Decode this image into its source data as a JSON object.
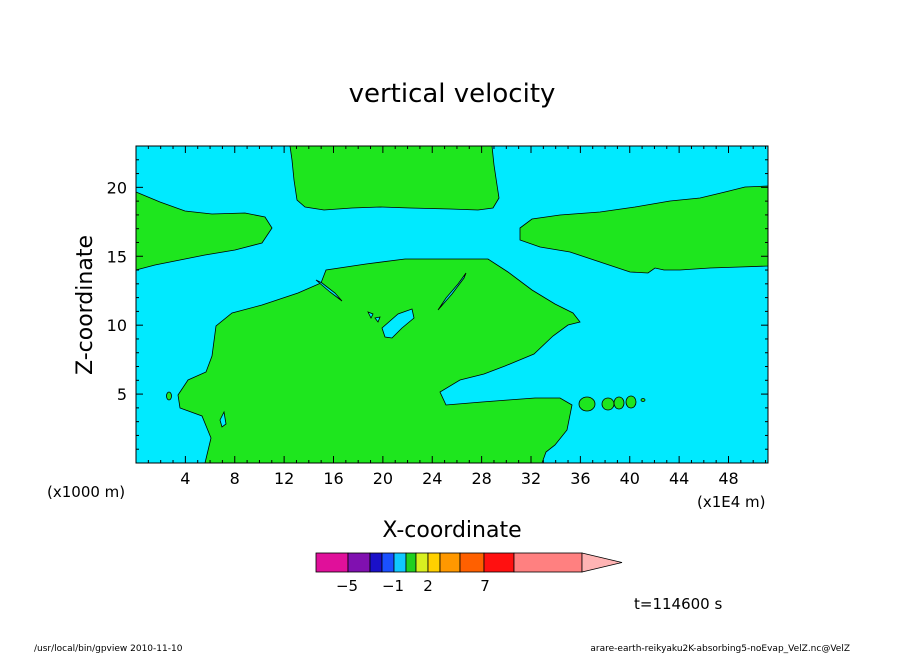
{
  "chart_data": {
    "type": "heatmap",
    "title": "vertical velocity",
    "xlabel": "X-coordinate",
    "ylabel": "Z-coordinate",
    "x_units": "(x1E4 m)",
    "y_units": "(x1000 m)",
    "xlim": [
      0,
      51.2
    ],
    "ylim": [
      0,
      23
    ],
    "x_ticks": [
      4,
      8,
      12,
      16,
      20,
      24,
      28,
      32,
      36,
      40,
      44,
      48
    ],
    "y_ticks": [
      5,
      10,
      15,
      20
    ],
    "grid": false,
    "colorbar": {
      "labels": [
        {
          "value": -5,
          "text": "−5"
        },
        {
          "value": -1,
          "text": "−1"
        },
        {
          "value": 2,
          "text": "2"
        },
        {
          "value": 7,
          "text": "7"
        }
      ],
      "colors": [
        "#e0109a",
        "#8010b0",
        "#1a10c8",
        "#1a50ff",
        "#10c8ff",
        "#20d020",
        "#d8f020",
        "#ffd000",
        "#ff9800",
        "#ff6000",
        "#ff1010",
        "#ff8080",
        "#ffb4b4"
      ],
      "extend": "max"
    },
    "regions": [
      {
        "name": "background",
        "color": "#00eaff"
      },
      {
        "name": "positive-velocity",
        "color": "#1ee61e"
      }
    ]
  },
  "time_label": "t=114600 s",
  "footer": {
    "left": "/usr/local/bin/gpview   2010-11-10",
    "right": "arare-earth-reikyaku2K-absorbing5-noEvap_VelZ.nc@VelZ"
  },
  "colors": {
    "background": "#00eaff",
    "positive": "#1ee61e",
    "outline": "#000000"
  }
}
